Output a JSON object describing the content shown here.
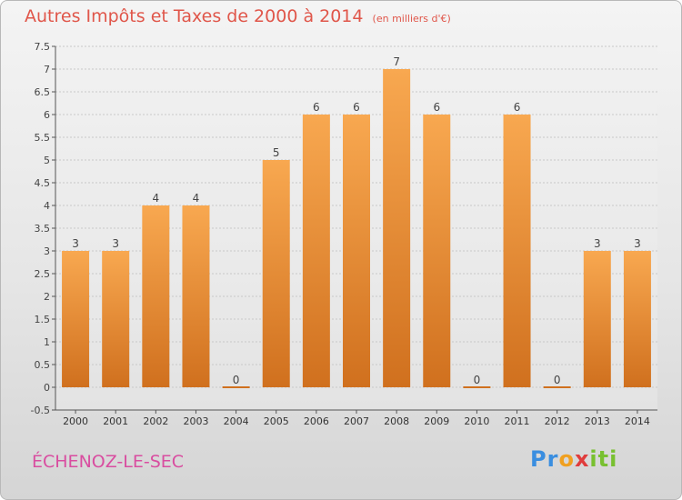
{
  "header": {
    "title": "Autres Impôts et Taxes de 2000 à 2014",
    "unit": "(en milliers d'€)"
  },
  "footer": {
    "commune": "ÉCHENOZ-LE-SEC",
    "logo": {
      "p1": "Pr",
      "p2": "o",
      "p3": "x",
      "p4": "iti"
    }
  },
  "chart_data": {
    "type": "bar",
    "title": "Autres Impôts et Taxes de 2000 à 2014",
    "subtitle": "(en milliers d'€)",
    "categories": [
      "2000",
      "2001",
      "2002",
      "2003",
      "2004",
      "2005",
      "2006",
      "2007",
      "2008",
      "2009",
      "2010",
      "2011",
      "2012",
      "2013",
      "2014"
    ],
    "values": [
      3,
      3,
      4,
      4,
      0,
      5,
      6,
      6,
      7,
      6,
      0,
      6,
      0,
      3,
      3
    ],
    "ylim": [
      -0.5,
      7.5
    ],
    "yticks": [
      "-0.5",
      "0",
      "0.5",
      "1",
      "1.5",
      "2",
      "2.5",
      "3",
      "3.5",
      "4",
      "4.5",
      "5",
      "5.5",
      "6",
      "6.5",
      "7",
      "7.5"
    ],
    "grid": true,
    "colors": {
      "bar_top": "#f8a850",
      "bar_bottom": "#d0701e",
      "grid": "#c8c8c8"
    }
  }
}
